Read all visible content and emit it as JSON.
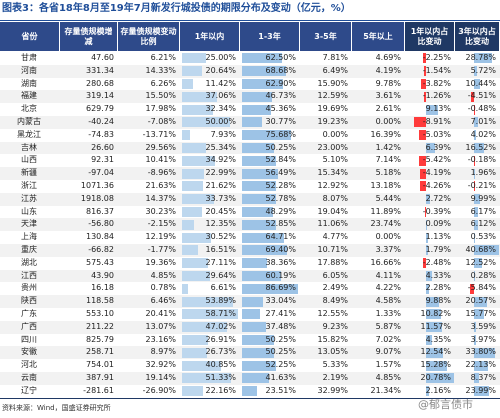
{
  "title": "图表3：各省18年8月至19年7月新发行城投债的期限分布及变动（亿元，%）",
  "table": {
    "headers": [
      "省份",
      "存量债规模增减",
      "存量债规模变动比例",
      "1年以内",
      "1-3年",
      "3-5年",
      "5年以上",
      "1年以内占比变动",
      "3年以内占比变动"
    ],
    "rows": [
      [
        "甘肃",
        "47.60",
        "6.21%",
        "25.00%",
        "62.50%",
        "7.81%",
        "4.69%",
        "-2.25%",
        "28.78%"
      ],
      [
        "河南",
        "331.34",
        "14.33%",
        "20.64%",
        "68.68%",
        "6.49%",
        "4.19%",
        "-1.54%",
        "5.72%"
      ],
      [
        "湖南",
        "280.68",
        "6.26%",
        "11.42%",
        "62.90%",
        "15.90%",
        "9.78%",
        "-3.82%",
        "10.44%"
      ],
      [
        "福建",
        "319.14",
        "15.50%",
        "37.06%",
        "46.73%",
        "12.59%",
        "3.61%",
        "-1.26%",
        "-4.51%"
      ],
      [
        "北京",
        "629.79",
        "17.98%",
        "32.34%",
        "45.36%",
        "19.69%",
        "2.61%",
        "9.13%",
        "-0.48%"
      ],
      [
        "内蒙古",
        "-40.24",
        "-7.08%",
        "50.00%",
        "30.77%",
        "19.23%",
        "0.00%",
        "-8.91%",
        "7.01%"
      ],
      [
        "黑龙江",
        "-74.83",
        "-13.71%",
        "7.93%",
        "75.68%",
        "0.00%",
        "16.39%",
        "-5.03%",
        "4.02%"
      ],
      [
        "吉林",
        "26.60",
        "29.56%",
        "25.34%",
        "50.25%",
        "23.00%",
        "1.42%",
        "6.39%",
        "16.52%"
      ],
      [
        "山西",
        "92.31",
        "10.41%",
        "34.92%",
        "52.84%",
        "5.10%",
        "7.14%",
        "-5.42%",
        "-0.18%"
      ],
      [
        "新疆",
        "-97.04",
        "-8.96%",
        "22.99%",
        "56.49%",
        "15.34%",
        "5.18%",
        "-4.19%",
        "1.96%"
      ],
      [
        "浙江",
        "1071.36",
        "21.63%",
        "21.62%",
        "52.28%",
        "12.92%",
        "13.18%",
        "-4.26%",
        "-0.21%"
      ],
      [
        "江苏",
        "1918.08",
        "14.37%",
        "33.73%",
        "52.78%",
        "8.07%",
        "5.44%",
        "2.72%",
        "9.99%"
      ],
      [
        "山东",
        "816.37",
        "30.23%",
        "20.45%",
        "48.29%",
        "19.04%",
        "11.89%",
        "-0.39%",
        "6.17%"
      ],
      [
        "天津",
        "-56.80",
        "-2.15%",
        "12.35%",
        "52.85%",
        "11.06%",
        "23.74%",
        "0.09%",
        "6.12%"
      ],
      [
        "上海",
        "130.84",
        "12.19%",
        "30.52%",
        "64.71%",
        "4.77%",
        "0.00%",
        "1.13%",
        "0.53%"
      ],
      [
        "重庆",
        "-66.82",
        "-1.77%",
        "16.51%",
        "69.40%",
        "10.71%",
        "3.37%",
        "1.79%",
        "40.68%"
      ],
      [
        "湖北",
        "575.43",
        "19.36%",
        "27.11%",
        "38.36%",
        "17.88%",
        "16.66%",
        "-2.48%",
        "12.52%"
      ],
      [
        "江西",
        "43.90",
        "4.85%",
        "29.64%",
        "60.19%",
        "6.05%",
        "4.11%",
        "4.33%",
        "0.28%"
      ],
      [
        "贵州",
        "16.18",
        "0.78%",
        "6.61%",
        "86.69%",
        "2.49%",
        "4.22%",
        "2.28%",
        "-5.84%"
      ],
      [
        "陕西",
        "118.58",
        "6.46%",
        "53.89%",
        "33.04%",
        "8.49%",
        "4.58%",
        "9.88%",
        "20.57%"
      ],
      [
        "广东",
        "553.10",
        "20.41%",
        "58.71%",
        "27.41%",
        "12.55%",
        "1.33%",
        "10.82%",
        "15.77%"
      ],
      [
        "广西",
        "211.22",
        "13.07%",
        "47.02%",
        "37.48%",
        "9.23%",
        "5.87%",
        "11.57%",
        "3.59%"
      ],
      [
        "四川",
        "825.79",
        "23.16%",
        "26.91%",
        "50.25%",
        "15.82%",
        "7.02%",
        "4.35%",
        "3.97%"
      ],
      [
        "安徽",
        "258.71",
        "8.97%",
        "26.73%",
        "50.25%",
        "13.05%",
        "9.07%",
        "12.54%",
        "33.80%"
      ],
      [
        "河北",
        "754.01",
        "32.92%",
        "40.85%",
        "52.25%",
        "5.33%",
        "1.57%",
        "15.28%",
        "22.13%"
      ],
      [
        "云南",
        "387.91",
        "19.14%",
        "51.33%",
        "41.63%",
        "2.19%",
        "4.85%",
        "20.78%",
        "8.37%"
      ],
      [
        "辽宁",
        "-281.61",
        "-26.90%",
        "22.16%",
        "23.51%",
        "32.99%",
        "21.34%",
        "2.16%",
        "23.99%"
      ]
    ]
  },
  "source": "资料来源：Wind，国盛证券研究所",
  "watermark": "@郁言债市"
}
